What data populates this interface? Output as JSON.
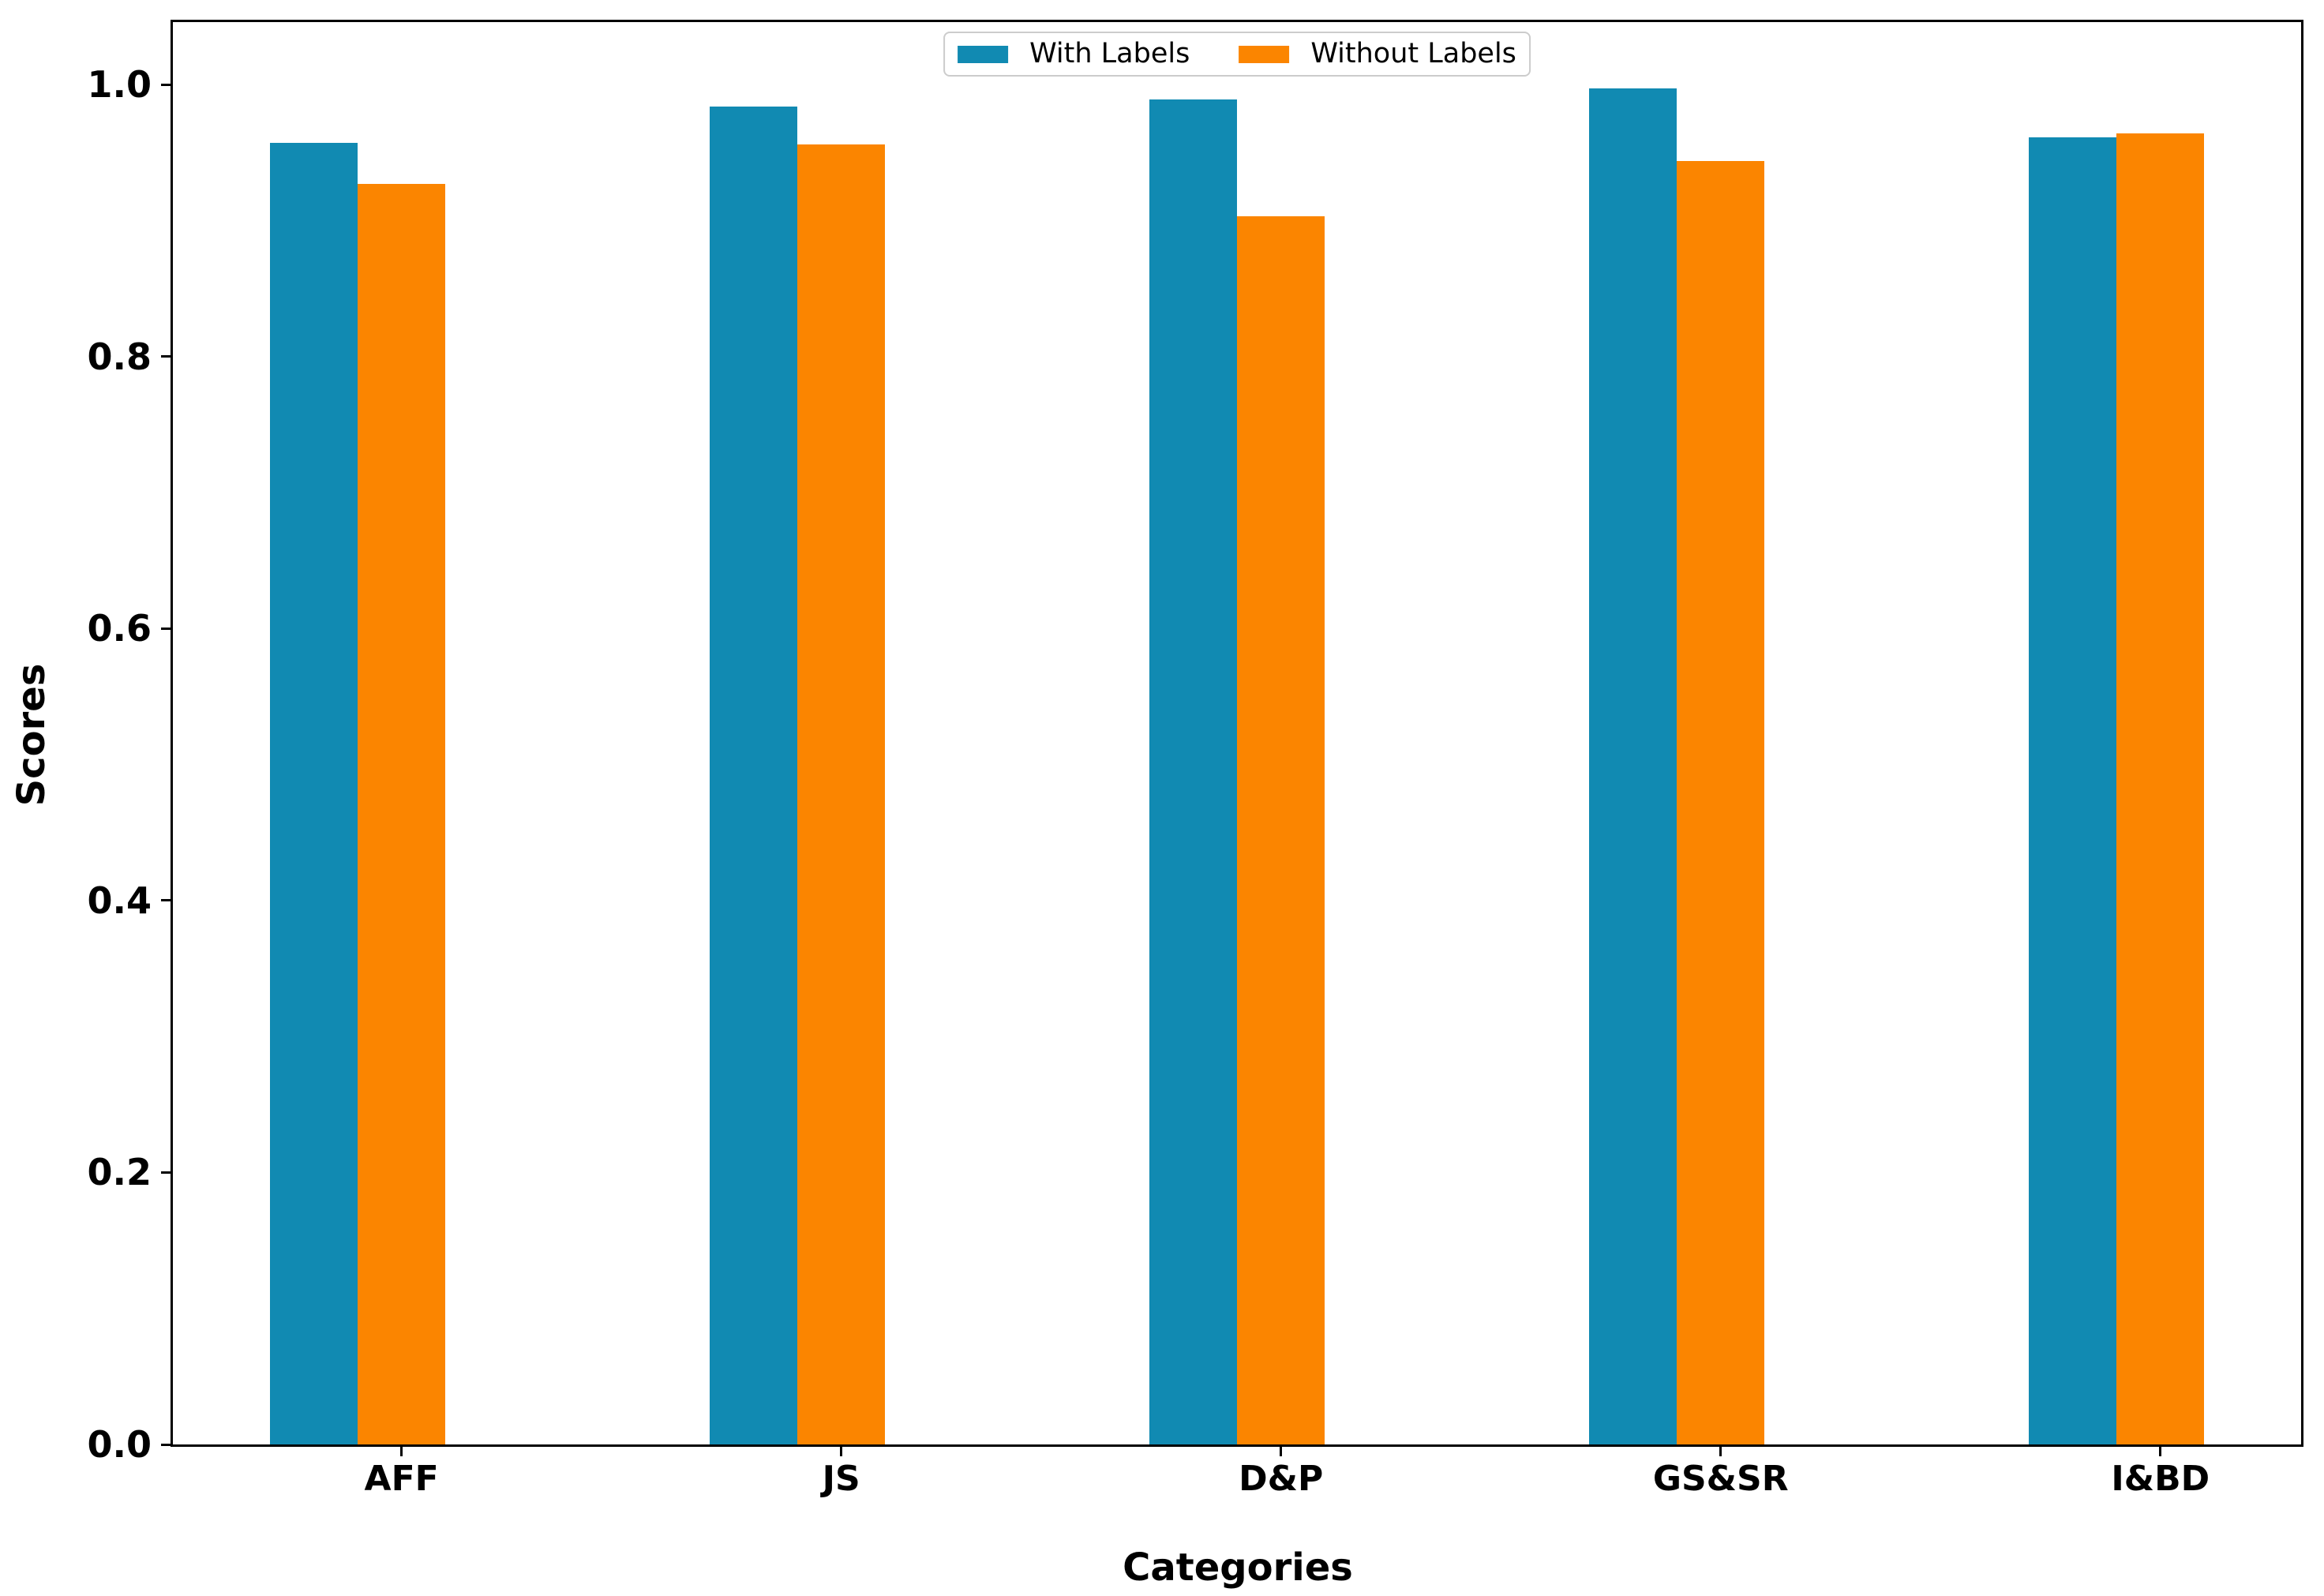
{
  "figure": {
    "background": "#ffffff",
    "spine_color": "#000000"
  },
  "chart_data": {
    "type": "bar",
    "title": "",
    "xlabel": "Categories",
    "ylabel": "Scores",
    "categories": [
      "AFF",
      "JS",
      "D&P",
      "GS&SR",
      "I&BD"
    ],
    "series": [
      {
        "name": "With Labels",
        "color": "#118ab2",
        "values": [
          0.957,
          0.984,
          0.989,
          0.997,
          0.961
        ]
      },
      {
        "name": "Without Labels",
        "color": "#fb8500",
        "values": [
          0.927,
          0.956,
          0.903,
          0.944,
          0.964
        ]
      }
    ],
    "ylim": [
      0,
      1.046
    ],
    "yticks": [
      0.0,
      0.2,
      0.4,
      0.6,
      0.8,
      1.0
    ],
    "ytick_labels": [
      "0.0",
      "0.2",
      "0.4",
      "0.6",
      "0.8",
      "1.0"
    ],
    "xlim_units": [
      -0.52,
      4.32
    ],
    "bar_width_units": 0.2,
    "group_offsets_units": [
      -0.3,
      -0.1
    ],
    "grid": false,
    "legend_position": "upper center"
  },
  "legend": {
    "items": [
      {
        "label": "With Labels",
        "color": "#118ab2"
      },
      {
        "label": "Without Labels",
        "color": "#fb8500"
      }
    ]
  }
}
